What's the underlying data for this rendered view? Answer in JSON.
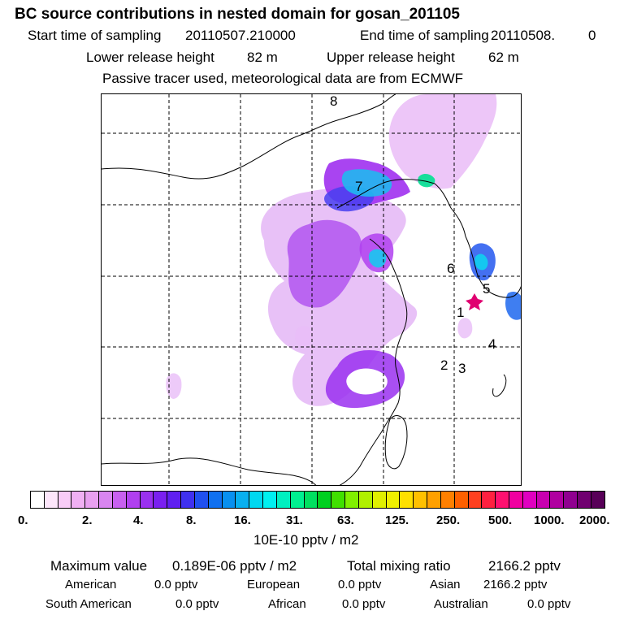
{
  "header": {
    "title": "BC  source contributions in nested domain for gosan_201105",
    "start_label": "Start time of sampling",
    "start_value": "20110507.210000",
    "end_label": "End time of sampling",
    "end_value": "20110508.",
    "end_extra": "0",
    "lower_label": "Lower release height",
    "lower_value": "82 m",
    "upper_label": "Upper release height",
    "upper_value": "62 m",
    "note": "Passive tracer used, meteorological data are from ECMWF"
  },
  "chart_data": {
    "type": "heatmap",
    "title": "BC  source contributions in nested domain for gosan_201105",
    "colorbar": {
      "unit": "10E-10 pptv / m2",
      "tick_labels": [
        "0.",
        "2.",
        "4.",
        "8.",
        "16.",
        "31.",
        "63.",
        "125.",
        "250.",
        "500.",
        "1000.",
        "2000."
      ],
      "colors": [
        "#ffffff",
        "#fde6fb",
        "#f8ccf7",
        "#f0b0f3",
        "#e8a0f0",
        "#d985f0",
        "#c860f0",
        "#b040f0",
        "#9a30f0",
        "#7a20f0",
        "#6020f0",
        "#4030f0",
        "#2050f0",
        "#1070f0",
        "#0890f0",
        "#08b0f0",
        "#00d8f0",
        "#00f0f0",
        "#00f0c0",
        "#00f090",
        "#00e060",
        "#00d020",
        "#40e000",
        "#80f000",
        "#b0f000",
        "#e0f000",
        "#f0f000",
        "#ffe000",
        "#ffc000",
        "#ffa000",
        "#ff8000",
        "#ff6000",
        "#ff4020",
        "#ff2040",
        "#ff1070",
        "#f000a0",
        "#e000c0",
        "#c800b0",
        "#b000a0",
        "#900090",
        "#700070",
        "#580058"
      ]
    },
    "labels": {
      "markers": [
        "8",
        "7",
        "6",
        "5",
        "1",
        "4",
        "2",
        "3"
      ]
    }
  },
  "footer": {
    "max_label": "Maximum value",
    "max_value": "0.189E-06 pptv / m2",
    "total_label": "Total mixing ratio",
    "total_value": "2166.2 pptv",
    "regions": [
      {
        "name": "American",
        "value": "0.0 pptv"
      },
      {
        "name": "European",
        "value": "0.0 pptv"
      },
      {
        "name": "Asian",
        "value": "2166.2 pptv"
      },
      {
        "name": "South American",
        "value": "0.0 pptv"
      },
      {
        "name": "African",
        "value": "0.0 pptv"
      },
      {
        "name": "Australian",
        "value": "0.0 pptv"
      }
    ]
  }
}
